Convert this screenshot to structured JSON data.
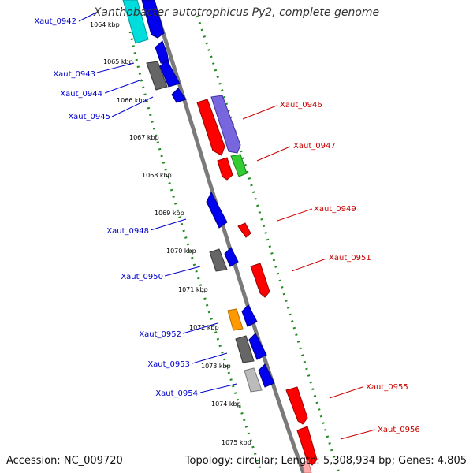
{
  "title": "Xanthobacter autotrophicus Py2, complete genome",
  "footer": {
    "accession_label": "Accession:",
    "accession": "NC_009720",
    "topology_label": "Topology:",
    "topology": "circular",
    "length_label": "Length:",
    "length": "5,308,934 bp",
    "genes_label": "Genes:",
    "genes": "4,805"
  },
  "scale": {
    "ticks": [
      "1064 kbp",
      "1065 kbp",
      "1066 kbp",
      "1067 kbp",
      "1068 kbp",
      "1069 kbp",
      "1070 kbp",
      "1071 kbp",
      "1072 kbp",
      "1073 kbp",
      "1074 kbp",
      "1075 kbp"
    ]
  },
  "colors": {
    "reverse_label": "#0000cc",
    "forward_label": "#cc0000",
    "backbone": "#7a7a7a",
    "dotted_track": "#228b22",
    "red": "#ff0000",
    "blue": "#0000ee",
    "purple": "#7766dd",
    "green": "#33cc33",
    "orange": "#ff9900",
    "dark_gray": "#555555",
    "light_gray": "#bbbbbb",
    "cyan": "#00dddd"
  },
  "genes": {
    "reverse": [
      "Xaut_0942",
      "Xaut_0943",
      "Xaut_0944",
      "Xaut_0945",
      "Xaut_0948",
      "Xaut_0950",
      "Xaut_0952",
      "Xaut_0953",
      "Xaut_0954"
    ],
    "forward": [
      "Xaut_0946",
      "Xaut_0947",
      "Xaut_0949",
      "Xaut_0951",
      "Xaut_0955",
      "Xaut_0956"
    ]
  }
}
